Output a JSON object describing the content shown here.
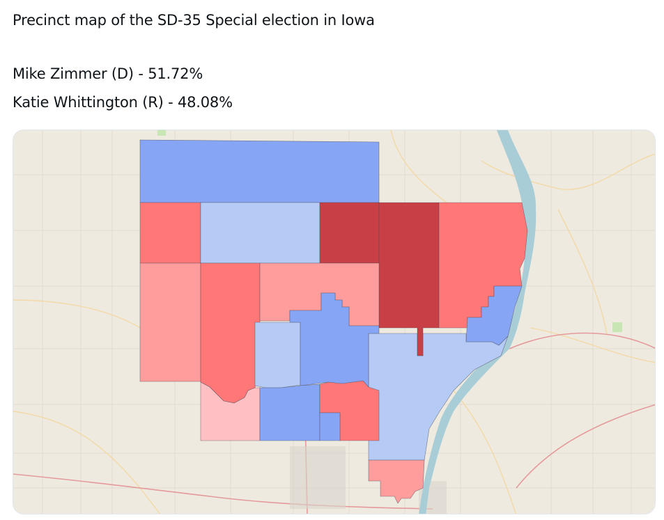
{
  "post": {
    "title": "Precinct map of the SD-35 Special election in Iowa",
    "candidates": [
      {
        "name": "Mike Zimmer",
        "party": "D",
        "share_text": "Mike Zimmer (D) - 51.72%",
        "percent": 51.72
      },
      {
        "name": "Katie Whittington",
        "party": "R",
        "share_text": "Katie Whittington (R) - 48.08%",
        "percent": 48.08
      }
    ]
  },
  "map": {
    "basemap_colors": {
      "land": "#efeae0",
      "water": "#a9cdd6",
      "road_major": "#e49a9a",
      "road_minor": "#f2d9a6",
      "grid": "#dcd6cc",
      "urban": "#d9d3cb",
      "park": "#c7e6b3"
    },
    "precinct_colors": {
      "strong_r": "#c84045",
      "r": "#ff7777",
      "lean_r": "#ff9d9d",
      "tilt_r": "#ffc0c4",
      "d": "#86a6f5",
      "lean_d": "#b5cbf5"
    }
  }
}
